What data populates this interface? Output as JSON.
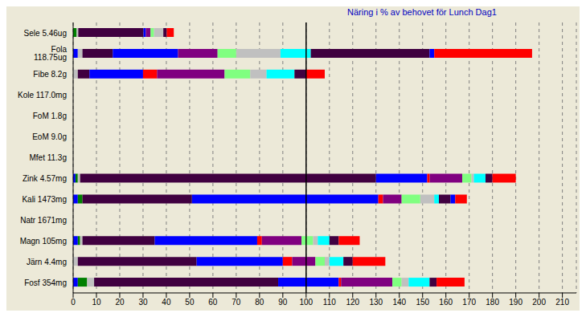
{
  "chart_data": {
    "type": "bar",
    "title": "Näring i % av behovet för Lunch Dag1",
    "orientation": "horizontal",
    "stacked": true,
    "grid": true,
    "categories": [
      "Sele 5.46ug",
      "Fola 118.75ug",
      "Fibe 8.2g",
      "Kole 117.0mg",
      "FoM 1.8g",
      "EoM 9.0g",
      "Mfet 11.3g",
      "Zink 4.57mg",
      "Kali 1473mg",
      "Natr 1671mg",
      "Magn 105mg",
      "Järn 4.4mg",
      "Fosf 354mg"
    ],
    "series": [
      {
        "color": "#0000ff",
        "values": [
          0,
          2,
          0,
          0,
          0,
          0,
          0,
          1,
          2,
          0,
          2,
          0,
          2
        ]
      },
      {
        "color": "#008000",
        "values": [
          1.5,
          0,
          0,
          0,
          0,
          0,
          0,
          1,
          2,
          0,
          1,
          0,
          4
        ]
      },
      {
        "color": "#c0c0c0",
        "values": [
          0.7,
          2,
          2,
          0,
          0,
          0,
          0,
          1,
          0,
          0,
          1,
          2,
          3
        ]
      },
      {
        "color": "#400040",
        "values": [
          28,
          13,
          5,
          0,
          0,
          0,
          0,
          127,
          47,
          0,
          31,
          51,
          79
        ]
      },
      {
        "color": "#0000ff",
        "values": [
          1,
          28,
          23,
          0,
          0,
          0,
          0,
          22,
          80,
          0,
          44,
          37,
          26
        ]
      },
      {
        "color": "#ff0000",
        "values": [
          0,
          0,
          6,
          0,
          0,
          0,
          0,
          1,
          2,
          0,
          2,
          4,
          1
        ]
      },
      {
        "color": "#800080",
        "values": [
          2,
          17,
          29,
          0,
          0,
          0,
          0,
          14,
          8,
          0,
          17,
          10,
          22
        ]
      },
      {
        "color": "#80ff80",
        "values": [
          1.5,
          8,
          11,
          0,
          0,
          0,
          0,
          4,
          8,
          0,
          5,
          4,
          4
        ]
      },
      {
        "color": "#c0c0c0",
        "values": [
          4,
          19,
          7,
          0,
          0,
          0,
          0,
          1,
          6,
          0,
          2,
          2,
          3
        ]
      },
      {
        "color": "#00ffff",
        "values": [
          0,
          13,
          12,
          0,
          0,
          0,
          0,
          5,
          2,
          0,
          5,
          6,
          9
        ]
      },
      {
        "color": "#400040",
        "values": [
          1.5,
          51,
          5,
          0,
          0,
          0,
          0,
          3,
          5,
          0,
          4,
          4,
          3
        ]
      },
      {
        "color": "#0000ff",
        "values": [
          0,
          2,
          0,
          0,
          0,
          0,
          0,
          0,
          2,
          0,
          0,
          0,
          0
        ]
      },
      {
        "color": "#ff0000",
        "values": [
          3,
          42,
          8,
          0,
          0,
          0,
          0,
          10,
          5,
          0,
          9,
          14,
          12
        ]
      }
    ],
    "xlim": [
      0,
      216
    ],
    "xticks": [
      0,
      10,
      20,
      30,
      40,
      50,
      60,
      70,
      80,
      90,
      100,
      110,
      120,
      130,
      140,
      150,
      160,
      170,
      180,
      190,
      200,
      210
    ],
    "reference_lines": [
      100
    ]
  }
}
